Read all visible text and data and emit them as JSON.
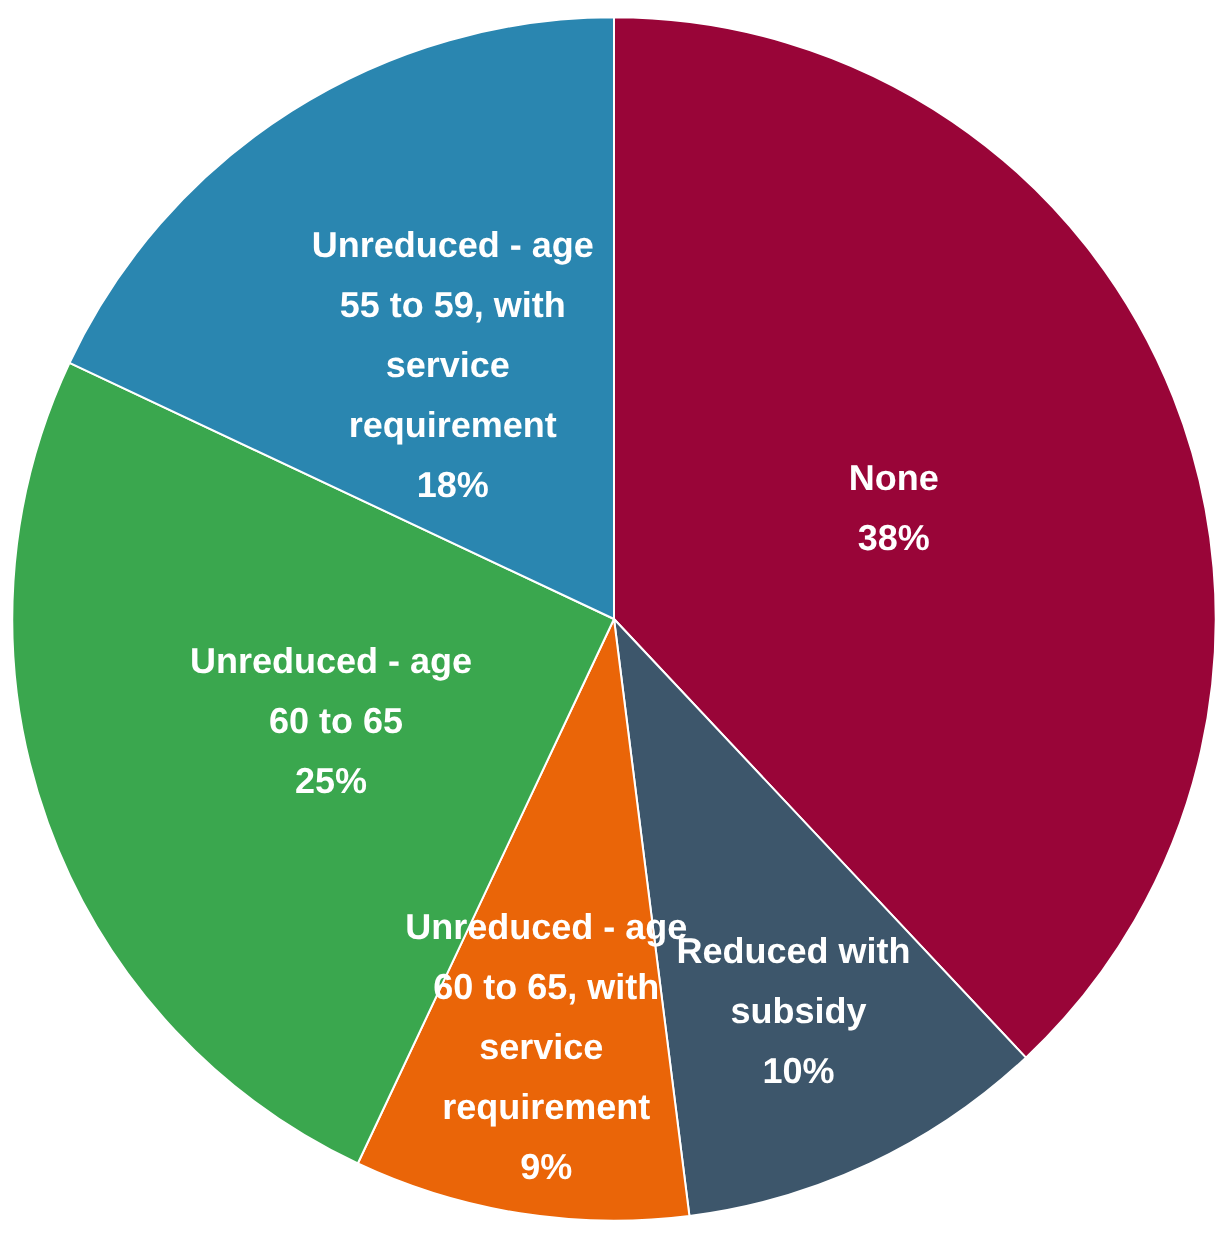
{
  "chart_data": {
    "type": "pie",
    "categories": [
      "None",
      "Reduced with subsidy",
      "Unreduced - age 60 to 65, with service requirement",
      "Unreduced - age 60 to 65",
      "Unreduced - age 55 to 59, with service requirement"
    ],
    "values": [
      38,
      10,
      9,
      25,
      18
    ],
    "value_labels": [
      "38%",
      "10%",
      "9%",
      "25%",
      "18%"
    ],
    "colors": [
      "#990538",
      "#3d566b",
      "#ea6508",
      "#3aa74e",
      "#2a86b0"
    ],
    "legend": false
  }
}
